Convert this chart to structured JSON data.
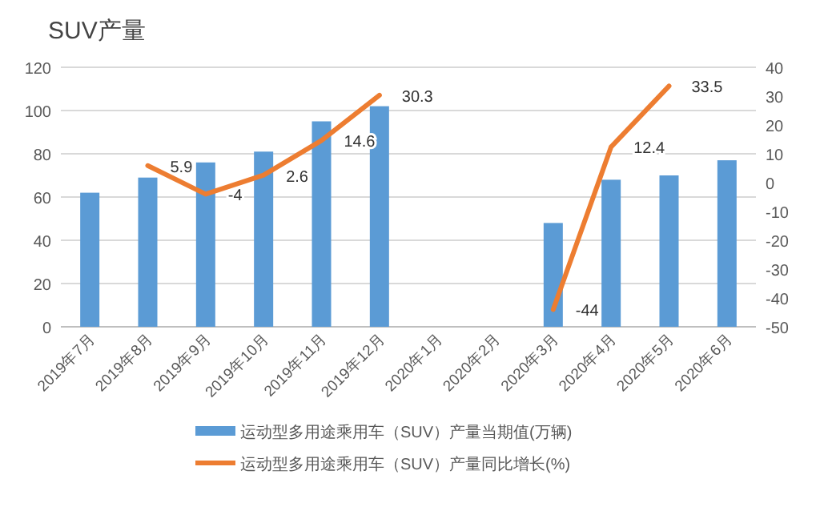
{
  "chart_data": {
    "type": "bar",
    "title": "SUV产量",
    "categories": [
      "2019年7月",
      "2019年8月",
      "2019年9月",
      "2019年10月",
      "2019年11月",
      "2019年12月",
      "2020年1月",
      "2020年2月",
      "2020年3月",
      "2020年4月",
      "2020年5月",
      "2020年6月"
    ],
    "series": [
      {
        "name": "运动型多用途乘用车（SUV）产量当期值(万辆)",
        "color": "#5b9bd5",
        "values": [
          62,
          69,
          76,
          81,
          95,
          102,
          null,
          null,
          48,
          68,
          70,
          77
        ]
      },
      {
        "name": "运动型多用途乘用车（SUV）产量同比增长(%)",
        "type": "line",
        "axis": "y2",
        "color": "#ed7d31",
        "values": [
          null,
          5.9,
          -4,
          2.6,
          14.6,
          30.3,
          null,
          null,
          -44,
          12.4,
          33.5,
          null
        ],
        "value_labels": [
          null,
          "5.9",
          "-4",
          "2.6",
          "14.6",
          "30.3",
          null,
          null,
          "-44",
          "12.4",
          "33.5",
          null
        ]
      }
    ],
    "ylim": [
      0,
      120
    ],
    "yticks": [
      0,
      20,
      40,
      60,
      80,
      100,
      120
    ],
    "y2lim": [
      -50,
      40
    ],
    "y2ticks": [
      -50,
      -40,
      -30,
      -20,
      -10,
      0,
      10,
      20,
      30,
      40
    ],
    "grid": "y",
    "legend": "bottom",
    "marker": "none"
  }
}
